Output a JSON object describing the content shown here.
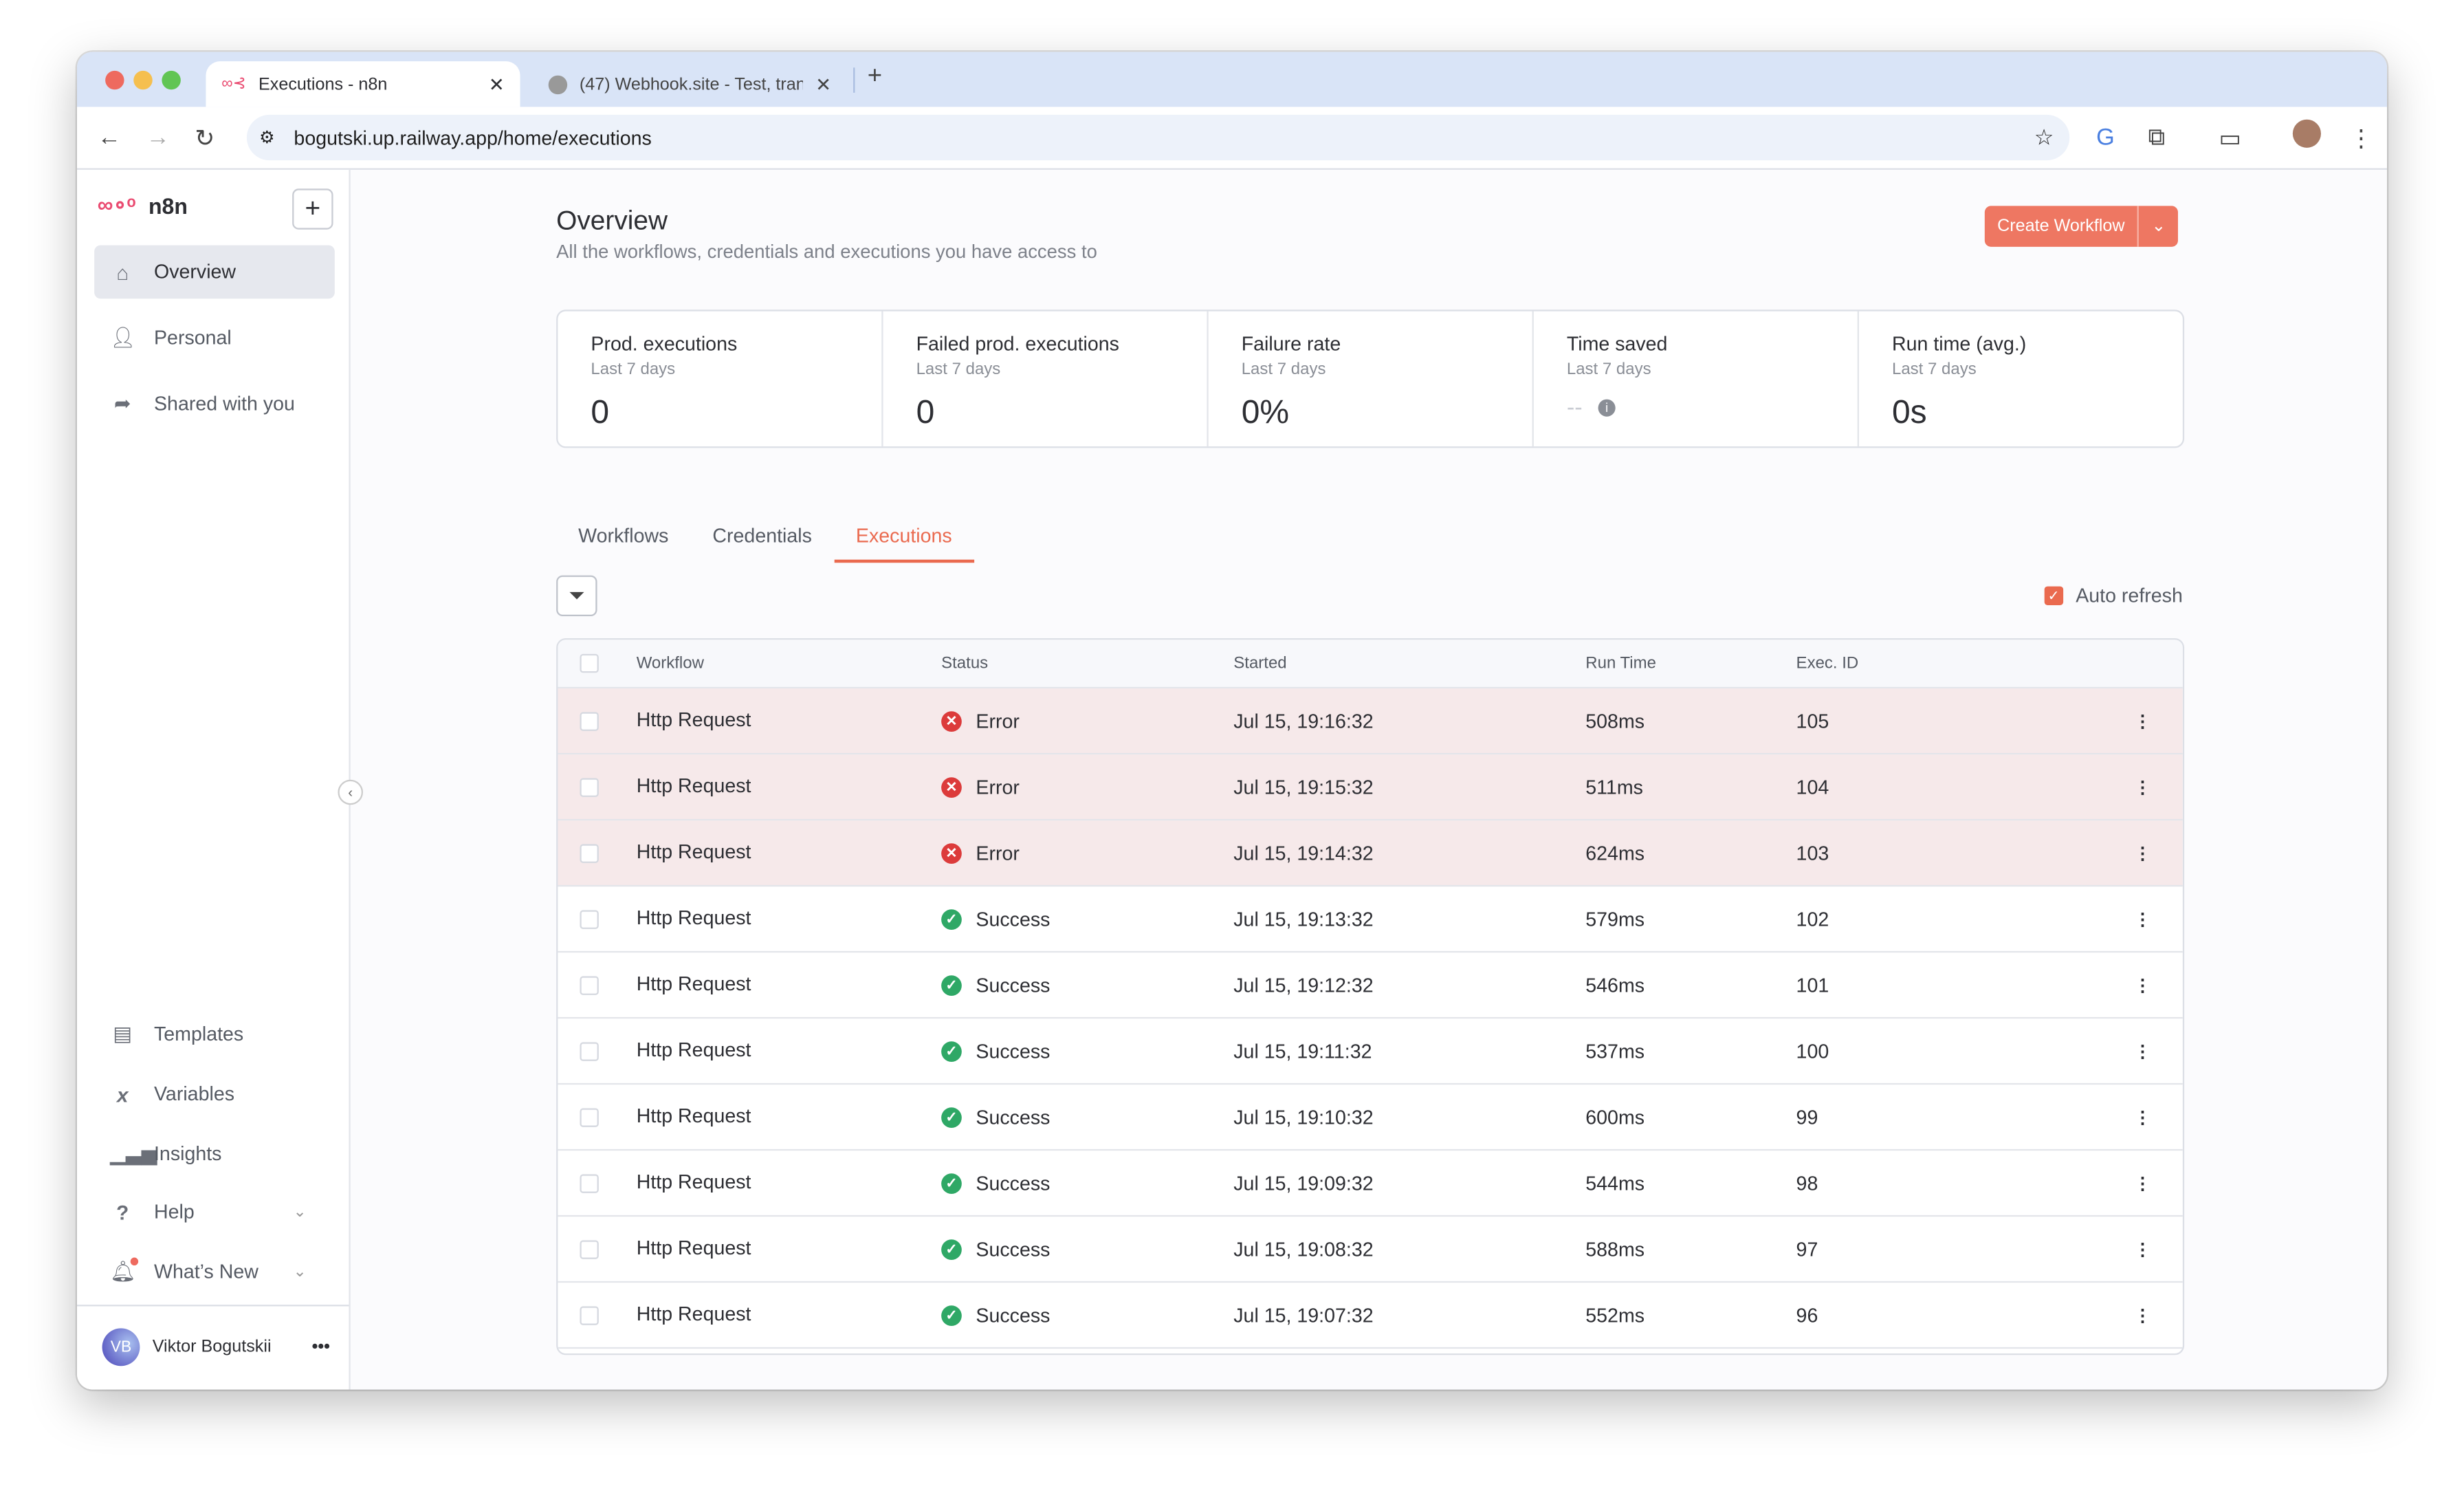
{
  "browser": {
    "tabs": [
      {
        "title": "Executions - n8n",
        "active": true
      },
      {
        "title": "(47) Webhook.site - Test, tran",
        "active": false
      }
    ],
    "url": "bogutski.up.railway.app/home/executions"
  },
  "sidebar": {
    "brand": "n8n",
    "top_items": [
      {
        "label": "Overview",
        "icon": "home-icon",
        "selected": true
      },
      {
        "label": "Personal",
        "icon": "user-icon"
      },
      {
        "label": "Shared with you",
        "icon": "share-icon"
      }
    ],
    "bottom_items": [
      {
        "label": "Templates",
        "icon": "box-icon"
      },
      {
        "label": "Variables",
        "icon": "variable-icon"
      },
      {
        "label": "Insights",
        "icon": "chart-icon"
      },
      {
        "label": "Help",
        "icon": "question-icon"
      },
      {
        "label": "What’s New",
        "icon": "bell-icon"
      }
    ],
    "user": {
      "initials": "VB",
      "name": "Viktor Bogutskii"
    }
  },
  "header": {
    "title": "Overview",
    "subtitle": "All the workflows, credentials and executions you have access to",
    "create_label": "Create Workflow"
  },
  "stats": [
    {
      "title": "Prod. executions",
      "period": "Last 7 days",
      "value": "0"
    },
    {
      "title": "Failed prod. executions",
      "period": "Last 7 days",
      "value": "0"
    },
    {
      "title": "Failure rate",
      "period": "Last 7 days",
      "value": "0%"
    },
    {
      "title": "Time saved",
      "period": "Last 7 days",
      "value": "--"
    },
    {
      "title": "Run time (avg.)",
      "period": "Last 7 days",
      "value": "0s"
    }
  ],
  "tabs": [
    "Workflows",
    "Credentials",
    "Executions"
  ],
  "auto_refresh": {
    "label": "Auto refresh",
    "checked": true
  },
  "table": {
    "columns": [
      "Workflow",
      "Status",
      "Started",
      "Run Time",
      "Exec. ID"
    ],
    "rows": [
      [
        "Http Request",
        "Error",
        "Jul 15, 19:16:32",
        "508ms",
        "105"
      ],
      [
        "Http Request",
        "Error",
        "Jul 15, 19:15:32",
        "511ms",
        "104"
      ],
      [
        "Http Request",
        "Error",
        "Jul 15, 19:14:32",
        "624ms",
        "103"
      ],
      [
        "Http Request",
        "Success",
        "Jul 15, 19:13:32",
        "579ms",
        "102"
      ],
      [
        "Http Request",
        "Success",
        "Jul 15, 19:12:32",
        "546ms",
        "101"
      ],
      [
        "Http Request",
        "Success",
        "Jul 15, 19:11:32",
        "537ms",
        "100"
      ],
      [
        "Http Request",
        "Success",
        "Jul 15, 19:10:32",
        "600ms",
        "99"
      ],
      [
        "Http Request",
        "Success",
        "Jul 15, 19:09:32",
        "544ms",
        "98"
      ],
      [
        "Http Request",
        "Success",
        "Jul 15, 19:08:32",
        "588ms",
        "97"
      ],
      [
        "Http Request",
        "Success",
        "Jul 15, 19:07:32",
        "552ms",
        "96"
      ]
    ]
  },
  "colors": {
    "accent": "#ea6a4f",
    "error": "#dc3b3b",
    "success": "#2fa866",
    "error_row": "#f6e9ea"
  }
}
